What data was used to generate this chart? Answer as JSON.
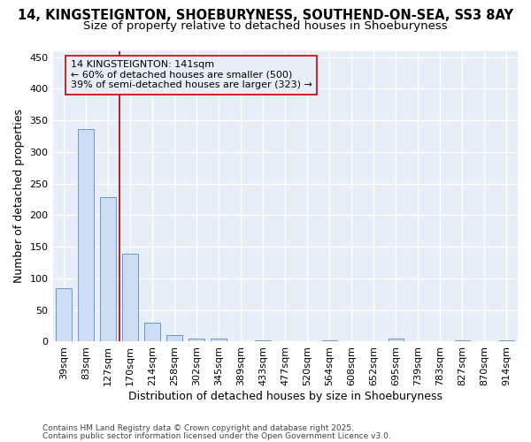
{
  "title_line1": "14, KINGSTEIGNTON, SHOEBURYNESS, SOUTHEND-ON-SEA, SS3 8AY",
  "title_line2": "Size of property relative to detached houses in Shoeburyness",
  "xlabel": "Distribution of detached houses by size in Shoeburyness",
  "ylabel": "Number of detached properties",
  "categories": [
    "39sqm",
    "83sqm",
    "127sqm",
    "170sqm",
    "214sqm",
    "258sqm",
    "302sqm",
    "345sqm",
    "389sqm",
    "433sqm",
    "477sqm",
    "520sqm",
    "564sqm",
    "608sqm",
    "652sqm",
    "695sqm",
    "739sqm",
    "783sqm",
    "827sqm",
    "870sqm",
    "914sqm"
  ],
  "values": [
    85,
    336,
    229,
    139,
    30,
    10,
    5,
    5,
    0,
    2,
    0,
    0,
    2,
    0,
    0,
    5,
    0,
    0,
    2,
    0,
    2
  ],
  "bar_color": "#cdddf5",
  "bar_edge_color": "#6699cc",
  "vline_x": 2.5,
  "vline_color": "#aa0000",
  "annotation_text": "14 KINGSTEIGNTON: 141sqm\n← 60% of detached houses are smaller (500)\n39% of semi-detached houses are larger (323) →",
  "annotation_box_color": "#cc0000",
  "ylim": [
    0,
    460
  ],
  "yticks": [
    0,
    50,
    100,
    150,
    200,
    250,
    300,
    350,
    400,
    450
  ],
  "bg_color": "#ffffff",
  "plot_bg_color": "#e8eef8",
  "grid_color": "#ffffff",
  "footer_line1": "Contains HM Land Registry data © Crown copyright and database right 2025.",
  "footer_line2": "Contains public sector information licensed under the Open Government Licence v3.0.",
  "title_fontsize": 10.5,
  "subtitle_fontsize": 9.5,
  "axis_label_fontsize": 9,
  "tick_fontsize": 8,
  "annotation_fontsize": 8,
  "footer_fontsize": 6.5
}
